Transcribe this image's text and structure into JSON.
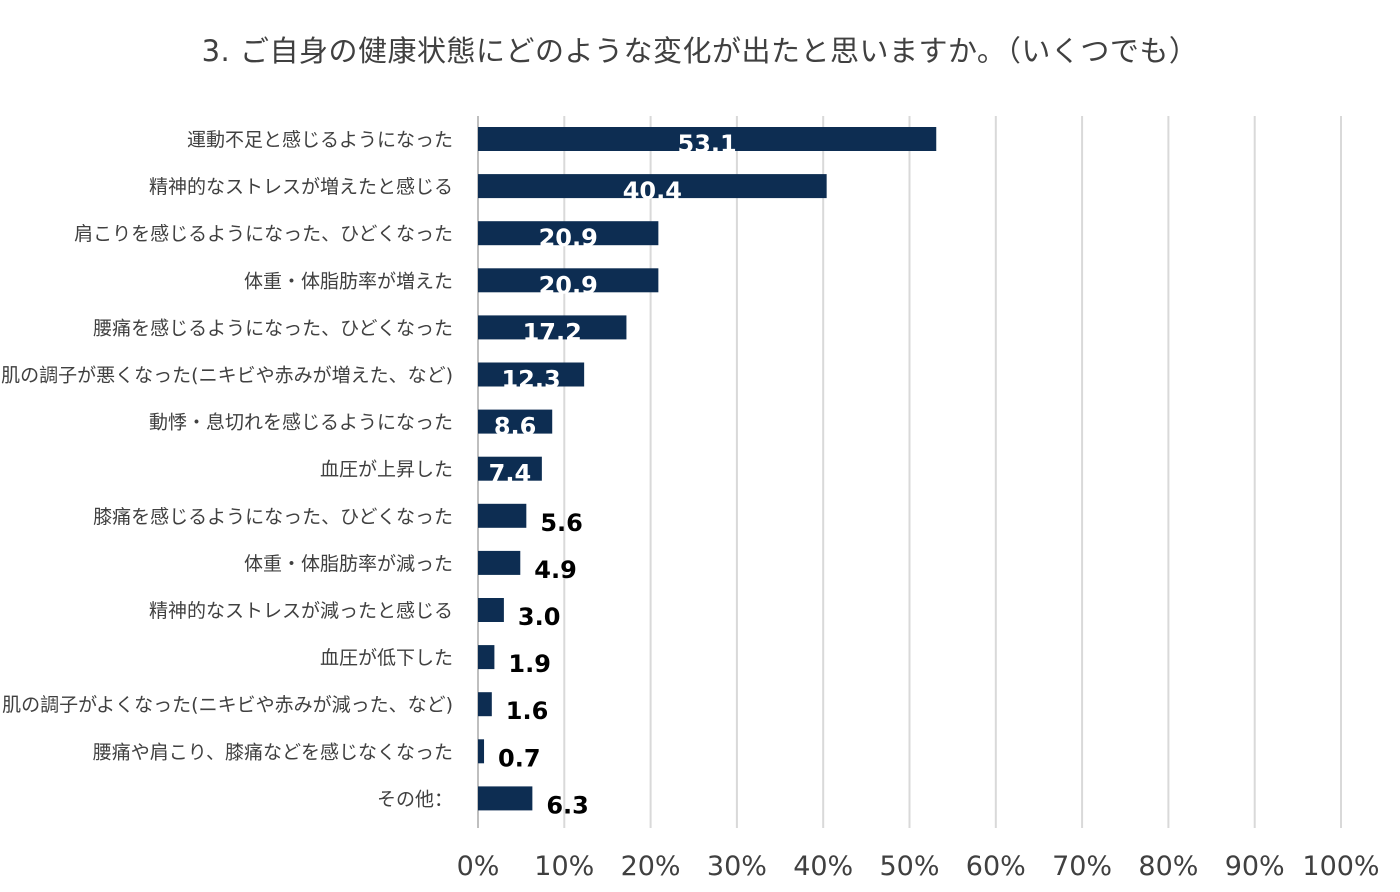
{
  "chart_data": {
    "type": "bar",
    "orientation": "horizontal",
    "title": "3. ご自身の健康状態にどのような変化が出たと思いますか。（いくつでも）",
    "categories": [
      "運動不足と感じるようになった",
      "精神的なストレスが増えたと感じる",
      "肩こりを感じるようになった、ひどくなった",
      "体重・体脂肪率が増えた",
      "腰痛を感じるようになった、ひどくなった",
      "肌の調子が悪くなった(ニキビや赤みが増えた、など)",
      "動悸・息切れを感じるようになった",
      "血圧が上昇した",
      "膝痛を感じるようになった、ひどくなった",
      "体重・体脂肪率が減った",
      "精神的なストレスが減ったと感じる",
      "血圧が低下した",
      "肌の調子がよくなった(ニキビや赤みが減った、など)",
      "腰痛や肩こり、膝痛などを感じなくなった",
      "その他："
    ],
    "values": [
      53.1,
      40.4,
      20.9,
      20.9,
      17.2,
      12.3,
      8.6,
      7.4,
      5.6,
      4.9,
      3.0,
      1.9,
      1.6,
      0.7,
      6.3
    ],
    "value_labels": [
      "53.1",
      "40.4",
      "20.9",
      "20.9",
      "17.2",
      "12.3",
      "8.6",
      "7.4",
      "5.6",
      "4.9",
      "3.0",
      "1.9",
      "1.6",
      "0.7",
      "6.3"
    ],
    "xlim": [
      0,
      100
    ],
    "xticks": [
      "0%",
      "10%",
      "20%",
      "30%",
      "40%",
      "50%",
      "60%",
      "70%",
      "80%",
      "90%",
      "100%"
    ],
    "grid": true,
    "legend": "none",
    "bar_color": "#0d2d52",
    "grid_color": "#d9d9d9"
  }
}
